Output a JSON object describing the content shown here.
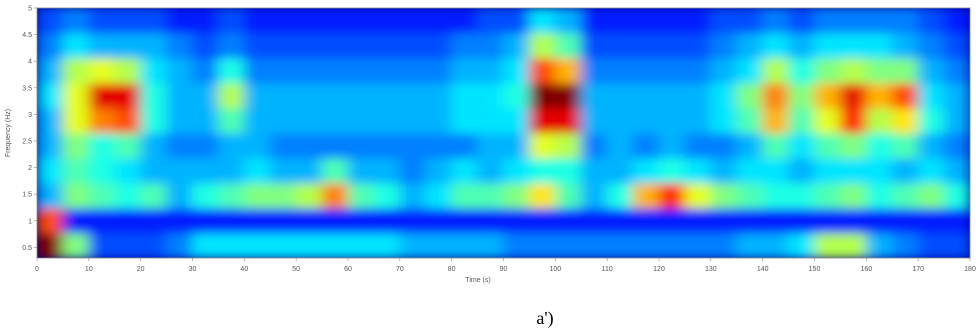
{
  "chart_data": {
    "type": "heatmap",
    "colormap": "jet",
    "caption": "a')",
    "x_label": "Time (s)",
    "y_label": "Frequency (Hz)",
    "xlim": [
      0,
      180
    ],
    "ylim": [
      0.3,
      5
    ],
    "xticks": [
      0,
      10,
      20,
      30,
      40,
      50,
      60,
      70,
      80,
      90,
      100,
      110,
      120,
      130,
      140,
      150,
      160,
      170,
      180
    ],
    "yticks": [
      0.5,
      1,
      1.5,
      2,
      2.5,
      3,
      3.5,
      4,
      4.5,
      5
    ],
    "z": [
      [
        1.0,
        0.5,
        0.2,
        0.2,
        0.2,
        0.25,
        0.35,
        0.35,
        0.35,
        0.35,
        0.35,
        0.35,
        0.35,
        0.35,
        0.3,
        0.3,
        0.3,
        0.3,
        0.25,
        0.25,
        0.25,
        0.25,
        0.25,
        0.25,
        0.25,
        0.25,
        0.25,
        0.3,
        0.3,
        0.35,
        0.55,
        0.55,
        0.3,
        0.25,
        0.2,
        0.2
      ],
      [
        0.8,
        0.15,
        0.15,
        0.15,
        0.15,
        0.15,
        0.15,
        0.15,
        0.15,
        0.15,
        0.15,
        0.15,
        0.15,
        0.15,
        0.15,
        0.15,
        0.15,
        0.15,
        0.15,
        0.15,
        0.15,
        0.15,
        0.15,
        0.15,
        0.15,
        0.15,
        0.15,
        0.15,
        0.15,
        0.15,
        0.15,
        0.15,
        0.15,
        0.15,
        0.15,
        0.15
      ],
      [
        0.3,
        0.5,
        0.45,
        0.4,
        0.45,
        0.3,
        0.4,
        0.45,
        0.5,
        0.5,
        0.55,
        0.75,
        0.45,
        0.4,
        0.3,
        0.35,
        0.45,
        0.45,
        0.5,
        0.65,
        0.45,
        0.3,
        0.4,
        0.7,
        0.85,
        0.6,
        0.5,
        0.45,
        0.4,
        0.4,
        0.45,
        0.5,
        0.4,
        0.45,
        0.5,
        0.4
      ],
      [
        0.35,
        0.45,
        0.4,
        0.35,
        0.3,
        0.3,
        0.3,
        0.3,
        0.35,
        0.3,
        0.3,
        0.45,
        0.3,
        0.3,
        0.25,
        0.3,
        0.35,
        0.3,
        0.35,
        0.4,
        0.4,
        0.3,
        0.3,
        0.35,
        0.4,
        0.35,
        0.3,
        0.35,
        0.35,
        0.3,
        0.35,
        0.35,
        0.35,
        0.3,
        0.35,
        0.3
      ],
      [
        0.3,
        0.5,
        0.4,
        0.45,
        0.3,
        0.25,
        0.25,
        0.3,
        0.3,
        0.25,
        0.25,
        0.25,
        0.25,
        0.25,
        0.25,
        0.25,
        0.25,
        0.3,
        0.3,
        0.6,
        0.55,
        0.25,
        0.3,
        0.25,
        0.3,
        0.25,
        0.25,
        0.3,
        0.45,
        0.35,
        0.45,
        0.5,
        0.4,
        0.45,
        0.3,
        0.25
      ],
      [
        0.3,
        0.6,
        0.75,
        0.8,
        0.4,
        0.3,
        0.3,
        0.45,
        0.3,
        0.3,
        0.3,
        0.3,
        0.3,
        0.3,
        0.3,
        0.3,
        0.35,
        0.35,
        0.35,
        0.9,
        0.9,
        0.3,
        0.3,
        0.3,
        0.3,
        0.3,
        0.35,
        0.45,
        0.7,
        0.45,
        0.6,
        0.85,
        0.55,
        0.65,
        0.4,
        0.3
      ],
      [
        0.35,
        0.6,
        0.9,
        0.9,
        0.4,
        0.3,
        0.3,
        0.55,
        0.3,
        0.3,
        0.3,
        0.3,
        0.3,
        0.3,
        0.3,
        0.3,
        0.35,
        0.35,
        0.4,
        1.0,
        1.0,
        0.3,
        0.3,
        0.3,
        0.3,
        0.3,
        0.35,
        0.5,
        0.75,
        0.5,
        0.7,
        0.9,
        0.7,
        0.8,
        0.35,
        0.3
      ],
      [
        0.3,
        0.55,
        0.6,
        0.55,
        0.35,
        0.3,
        0.25,
        0.4,
        0.25,
        0.25,
        0.25,
        0.25,
        0.25,
        0.25,
        0.25,
        0.25,
        0.3,
        0.3,
        0.35,
        0.8,
        0.7,
        0.25,
        0.25,
        0.25,
        0.25,
        0.25,
        0.3,
        0.35,
        0.55,
        0.4,
        0.5,
        0.55,
        0.5,
        0.5,
        0.3,
        0.25
      ],
      [
        0.25,
        0.35,
        0.3,
        0.3,
        0.3,
        0.25,
        0.2,
        0.25,
        0.2,
        0.2,
        0.2,
        0.2,
        0.2,
        0.2,
        0.2,
        0.2,
        0.25,
        0.25,
        0.3,
        0.55,
        0.45,
        0.2,
        0.2,
        0.2,
        0.2,
        0.2,
        0.25,
        0.3,
        0.35,
        0.3,
        0.35,
        0.35,
        0.35,
        0.3,
        0.25,
        0.2
      ],
      [
        0.2,
        0.25,
        0.2,
        0.2,
        0.2,
        0.15,
        0.15,
        0.2,
        0.15,
        0.15,
        0.15,
        0.15,
        0.15,
        0.15,
        0.15,
        0.15,
        0.15,
        0.2,
        0.2,
        0.35,
        0.3,
        0.15,
        0.15,
        0.15,
        0.15,
        0.15,
        0.2,
        0.2,
        0.25,
        0.2,
        0.25,
        0.25,
        0.25,
        0.25,
        0.2,
        0.15
      ]
    ]
  }
}
